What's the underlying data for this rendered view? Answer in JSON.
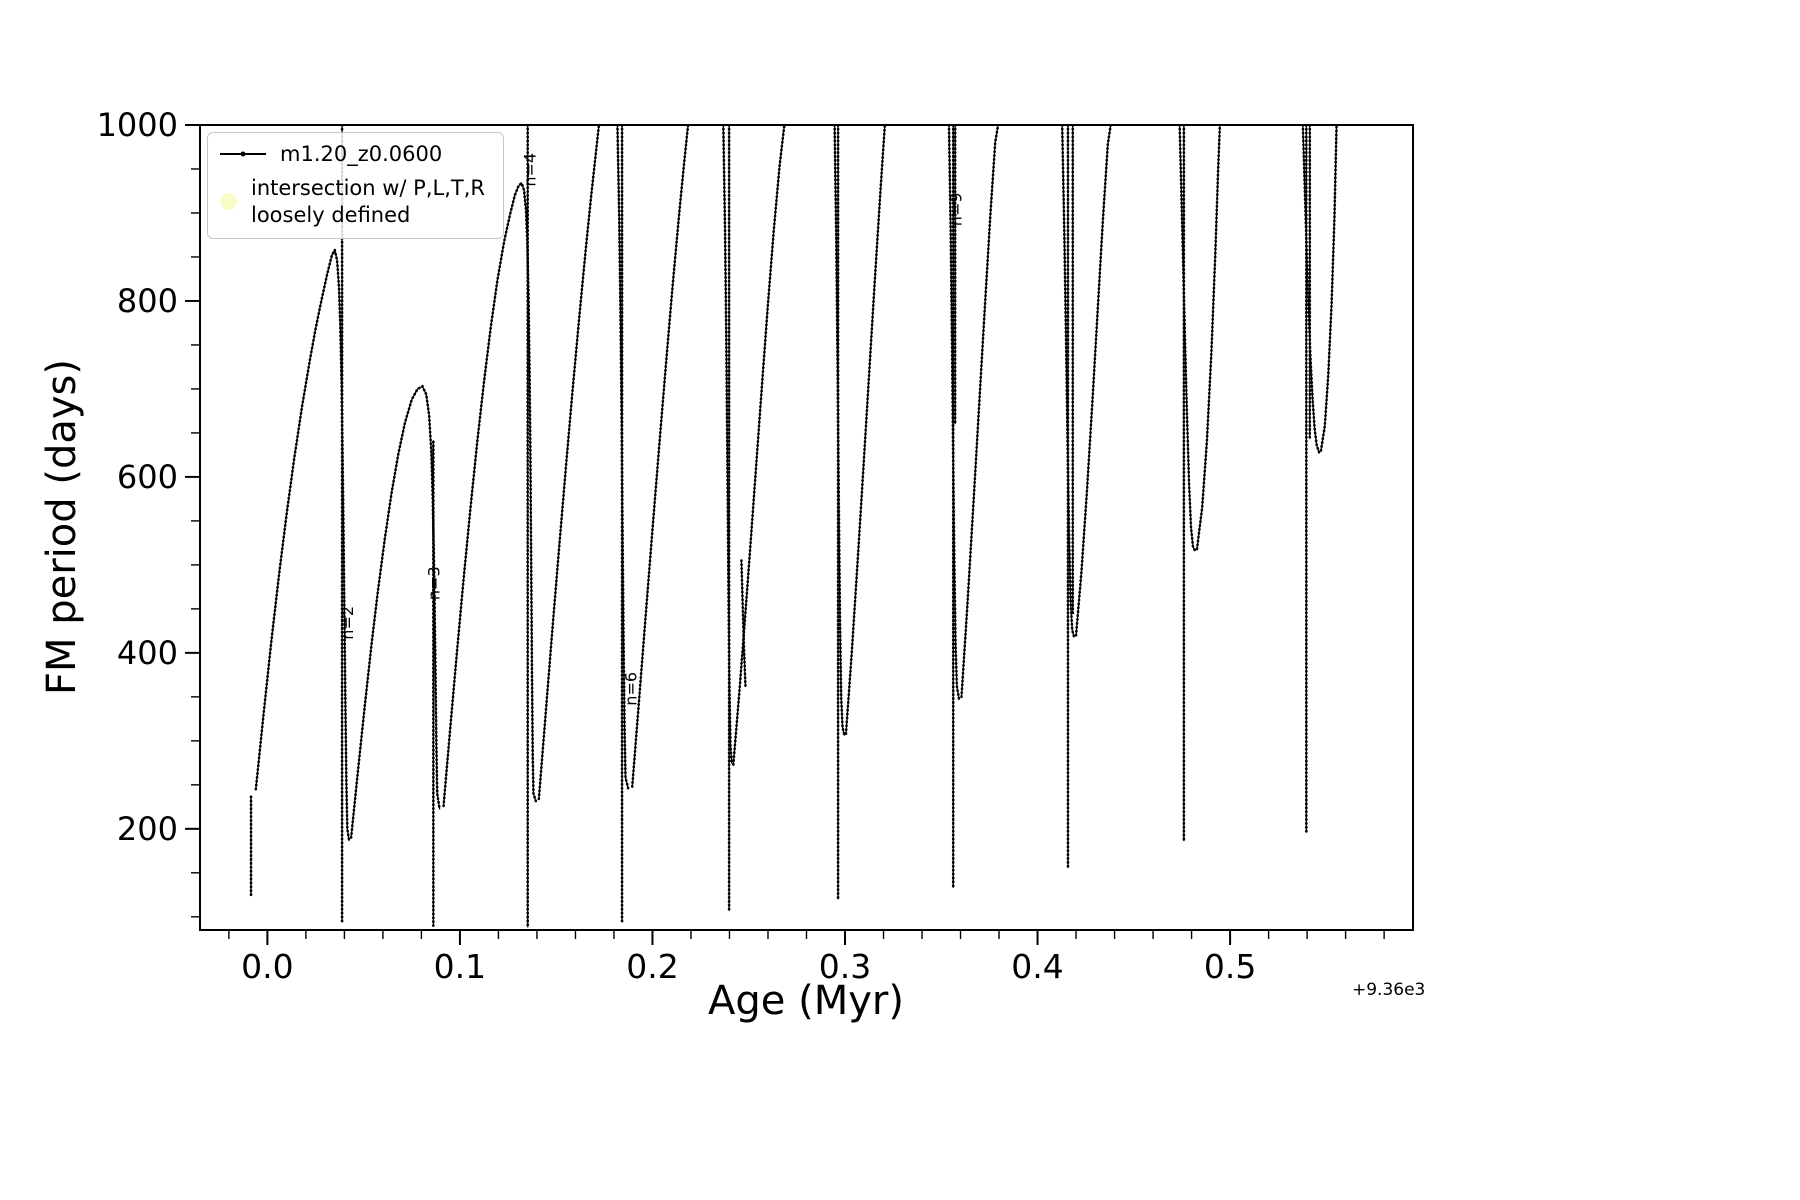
{
  "figure": {
    "background": "#ffffff"
  },
  "chart_data": {
    "type": "line",
    "title": "",
    "xlabel": "Age (Myr)",
    "ylabel": "FM period (days)",
    "x_offset_text": "+9.36e3",
    "xlim": [
      -0.035,
      0.595
    ],
    "ylim": [
      85,
      1000
    ],
    "xticks": [
      0.0,
      0.1,
      0.2,
      0.3,
      0.4,
      0.5
    ],
    "xtick_labels": [
      "0.0",
      "0.1",
      "0.2",
      "0.3",
      "0.4",
      "0.5"
    ],
    "yticks": [
      200,
      400,
      600,
      800,
      1000
    ],
    "ytick_labels": [
      "200",
      "400",
      "600",
      "800",
      "1000"
    ],
    "x_minor_step": 0.02,
    "y_minor_step": 50,
    "grid": false,
    "legend_position": "upper-left",
    "legend": [
      {
        "label": "m1.20_z0.0600",
        "marker": "line-with-dot",
        "color": "#000000"
      },
      {
        "line1": "intersection w/ P,L,T,R",
        "line2": "loosely defined",
        "marker": "dot",
        "color": "#fbfbc9"
      }
    ],
    "annotations": [
      {
        "text": "n=2",
        "x": 0.0445,
        "y": 415,
        "rotation": 90
      },
      {
        "text": "n=3",
        "x": 0.0894,
        "y": 460,
        "rotation": 90
      },
      {
        "text": "n=4",
        "x": 0.1392,
        "y": 930,
        "rotation": 90
      },
      {
        "text": "n=6",
        "x": 0.1917,
        "y": 340,
        "rotation": 90
      },
      {
        "text": "n=9",
        "x": 0.3606,
        "y": 885,
        "rotation": 90
      }
    ],
    "series": [
      {
        "name": "m1.20_z0.0600",
        "color": "#000000",
        "segments": [
          [
            [
              -0.0085,
              125
            ],
            [
              -0.0085,
              238
            ]
          ],
          [
            [
              -0.006,
              245
            ],
            [
              -0.002,
              330
            ],
            [
              0.002,
              412
            ],
            [
              0.006,
              488
            ],
            [
              0.01,
              558
            ],
            [
              0.014,
              622
            ],
            [
              0.018,
              680
            ],
            [
              0.022,
              732
            ],
            [
              0.025,
              768
            ],
            [
              0.028,
              800
            ],
            [
              0.031,
              830
            ],
            [
              0.0335,
              852
            ],
            [
              0.035,
              858
            ],
            [
              0.0362,
              846
            ],
            [
              0.0372,
              815
            ],
            [
              0.0379,
              770
            ],
            [
              0.0385,
              710
            ],
            [
              0.039,
              635
            ],
            [
              0.0395,
              545
            ],
            [
              0.04,
              445
            ],
            [
              0.0405,
              345
            ],
            [
              0.041,
              255
            ],
            [
              0.0415,
              200
            ],
            [
              0.0425,
              186
            ]
          ],
          [
            [
              0.0388,
              1000
            ],
            [
              0.0388,
              95
            ]
          ],
          [
            [
              0.0435,
              190
            ],
            [
              0.047,
              265
            ],
            [
              0.0505,
              338
            ],
            [
              0.054,
              408
            ],
            [
              0.0575,
              472
            ],
            [
              0.061,
              530
            ],
            [
              0.0645,
              582
            ],
            [
              0.068,
              626
            ],
            [
              0.0715,
              662
            ],
            [
              0.075,
              688
            ],
            [
              0.078,
              700
            ],
            [
              0.0805,
              703
            ],
            [
              0.0825,
              694
            ],
            [
              0.084,
              670
            ],
            [
              0.0851,
              630
            ],
            [
              0.0859,
              572
            ],
            [
              0.0866,
              495
            ],
            [
              0.0872,
              400
            ],
            [
              0.0877,
              305
            ],
            [
              0.0882,
              240
            ],
            [
              0.0895,
              222
            ]
          ],
          [
            [
              0.0862,
              640
            ],
            [
              0.0862,
              90
            ]
          ],
          [
            [
              0.0915,
              226
            ],
            [
              0.095,
              315
            ],
            [
              0.0985,
              402
            ],
            [
              0.102,
              486
            ],
            [
              0.1055,
              565
            ],
            [
              0.109,
              640
            ],
            [
              0.1125,
              708
            ],
            [
              0.116,
              770
            ],
            [
              0.1195,
              824
            ],
            [
              0.123,
              868
            ],
            [
              0.126,
              898
            ],
            [
              0.1285,
              920
            ],
            [
              0.1305,
              931
            ],
            [
              0.132,
              934
            ],
            [
              0.1333,
              926
            ],
            [
              0.1343,
              903
            ],
            [
              0.135,
              866
            ],
            [
              0.1356,
              810
            ],
            [
              0.1361,
              730
            ],
            [
              0.1366,
              625
            ],
            [
              0.137,
              505
            ],
            [
              0.1374,
              385
            ],
            [
              0.1378,
              285
            ],
            [
              0.1382,
              240
            ],
            [
              0.1395,
              231
            ]
          ],
          [
            [
              0.1352,
              1000
            ],
            [
              0.1352,
              88
            ]
          ],
          [
            [
              0.141,
              234
            ],
            [
              0.1445,
              330
            ],
            [
              0.148,
              426
            ],
            [
              0.1515,
              519
            ],
            [
              0.155,
              610
            ],
            [
              0.1585,
              698
            ],
            [
              0.162,
              782
            ],
            [
              0.1655,
              862
            ],
            [
              0.168,
              916
            ],
            [
              0.1705,
              966
            ],
            [
              0.1722,
              1000
            ]
          ],
          [
            [
              0.1818,
              1000
            ],
            [
              0.1827,
              900
            ],
            [
              0.1834,
              785
            ],
            [
              0.184,
              660
            ],
            [
              0.1845,
              530
            ],
            [
              0.185,
              410
            ],
            [
              0.1855,
              315
            ],
            [
              0.186,
              258
            ],
            [
              0.1875,
              245
            ]
          ],
          [
            [
              0.1842,
              1000
            ],
            [
              0.1842,
              95
            ]
          ],
          [
            [
              0.1895,
              248
            ],
            [
              0.193,
              345
            ],
            [
              0.1965,
              443
            ],
            [
              0.2,
              540
            ],
            [
              0.2035,
              635
            ],
            [
              0.207,
              728
            ],
            [
              0.2105,
              818
            ],
            [
              0.214,
              902
            ],
            [
              0.2165,
              958
            ],
            [
              0.2185,
              1000
            ]
          ],
          [
            [
              0.2368,
              1000
            ],
            [
              0.2377,
              880
            ],
            [
              0.2384,
              745
            ],
            [
              0.239,
              600
            ],
            [
              0.2395,
              465
            ],
            [
              0.24,
              360
            ],
            [
              0.2405,
              295
            ],
            [
              0.2412,
              274
            ]
          ],
          [
            [
              0.2398,
              1000
            ],
            [
              0.2398,
              108
            ]
          ],
          [
            [
              0.2462,
              505
            ],
            [
              0.2469,
              452
            ],
            [
              0.2476,
              402
            ],
            [
              0.2483,
              362
            ]
          ],
          [
            [
              0.242,
              273
            ],
            [
              0.245,
              352
            ],
            [
              0.248,
              437
            ],
            [
              0.251,
              526
            ],
            [
              0.254,
              617
            ],
            [
              0.257,
              708
            ],
            [
              0.26,
              797
            ],
            [
              0.263,
              880
            ],
            [
              0.266,
              953
            ],
            [
              0.2685,
              1000
            ]
          ],
          [
            [
              0.2946,
              1000
            ],
            [
              0.2955,
              865
            ],
            [
              0.2962,
              715
            ],
            [
              0.2968,
              565
            ],
            [
              0.2974,
              435
            ],
            [
              0.298,
              350
            ],
            [
              0.2987,
              316
            ],
            [
              0.2997,
              306
            ]
          ],
          [
            [
              0.2964,
              1000
            ],
            [
              0.2964,
              120
            ]
          ],
          [
            [
              0.3005,
              308
            ],
            [
              0.3035,
              400
            ],
            [
              0.3065,
              502
            ],
            [
              0.3095,
              608
            ],
            [
              0.3125,
              716
            ],
            [
              0.3155,
              824
            ],
            [
              0.3185,
              928
            ],
            [
              0.3207,
              1000
            ]
          ],
          [
            [
              0.354,
              1000
            ],
            [
              0.3549,
              878
            ],
            [
              0.3556,
              748
            ],
            [
              0.3562,
              618
            ],
            [
              0.3568,
              500
            ],
            [
              0.3574,
              412
            ],
            [
              0.3581,
              362
            ],
            [
              0.3592,
              348
            ]
          ],
          [
            [
              0.3562,
              1000
            ],
            [
              0.3562,
              133
            ]
          ],
          [
            [
              0.3572,
              1000
            ],
            [
              0.3572,
              660
            ]
          ],
          [
            [
              0.3605,
              350
            ],
            [
              0.3635,
              452
            ],
            [
              0.3665,
              562
            ],
            [
              0.3695,
              675
            ],
            [
              0.3725,
              788
            ],
            [
              0.3755,
              898
            ],
            [
              0.378,
              980
            ],
            [
              0.3795,
              1000
            ]
          ],
          [
            [
              0.4128,
              1000
            ],
            [
              0.4139,
              878
            ],
            [
              0.4148,
              758
            ],
            [
              0.4156,
              640
            ],
            [
              0.4164,
              532
            ],
            [
              0.4172,
              458
            ],
            [
              0.418,
              426
            ],
            [
              0.419,
              418
            ]
          ],
          [
            [
              0.4158,
              1000
            ],
            [
              0.4158,
              157
            ]
          ],
          [
            [
              0.4183,
              1000
            ],
            [
              0.4183,
              445
            ]
          ],
          [
            [
              0.42,
              420
            ],
            [
              0.4228,
              492
            ],
            [
              0.4256,
              582
            ],
            [
              0.4284,
              682
            ],
            [
              0.4312,
              788
            ],
            [
              0.434,
              894
            ],
            [
              0.4365,
              978
            ],
            [
              0.438,
              1000
            ]
          ],
          [
            [
              0.4738,
              1000
            ],
            [
              0.4752,
              880
            ],
            [
              0.4764,
              772
            ],
            [
              0.4776,
              672
            ],
            [
              0.4787,
              592
            ],
            [
              0.4797,
              543
            ],
            [
              0.4807,
              521
            ],
            [
              0.4818,
              516
            ]
          ],
          [
            [
              0.476,
              1000
            ],
            [
              0.476,
              186
            ]
          ],
          [
            [
              0.4828,
              518
            ],
            [
              0.4855,
              565
            ],
            [
              0.488,
              642
            ],
            [
              0.4903,
              742
            ],
            [
              0.4923,
              852
            ],
            [
              0.4938,
              950
            ],
            [
              0.4947,
              1000
            ]
          ],
          [
            [
              0.5378,
              1000
            ],
            [
              0.5392,
              898
            ],
            [
              0.5405,
              808
            ],
            [
              0.5417,
              738
            ],
            [
              0.5428,
              690
            ],
            [
              0.5439,
              655
            ],
            [
              0.545,
              636
            ],
            [
              0.5462,
              628
            ]
          ],
          [
            [
              0.5396,
              1000
            ],
            [
              0.5396,
              197
            ]
          ],
          [
            [
              0.5414,
              1000
            ],
            [
              0.5414,
              645
            ]
          ],
          [
            [
              0.5472,
              630
            ],
            [
              0.5492,
              658
            ],
            [
              0.551,
              716
            ],
            [
              0.5527,
              796
            ],
            [
              0.5542,
              894
            ],
            [
              0.5553,
              1000
            ]
          ]
        ]
      }
    ]
  }
}
